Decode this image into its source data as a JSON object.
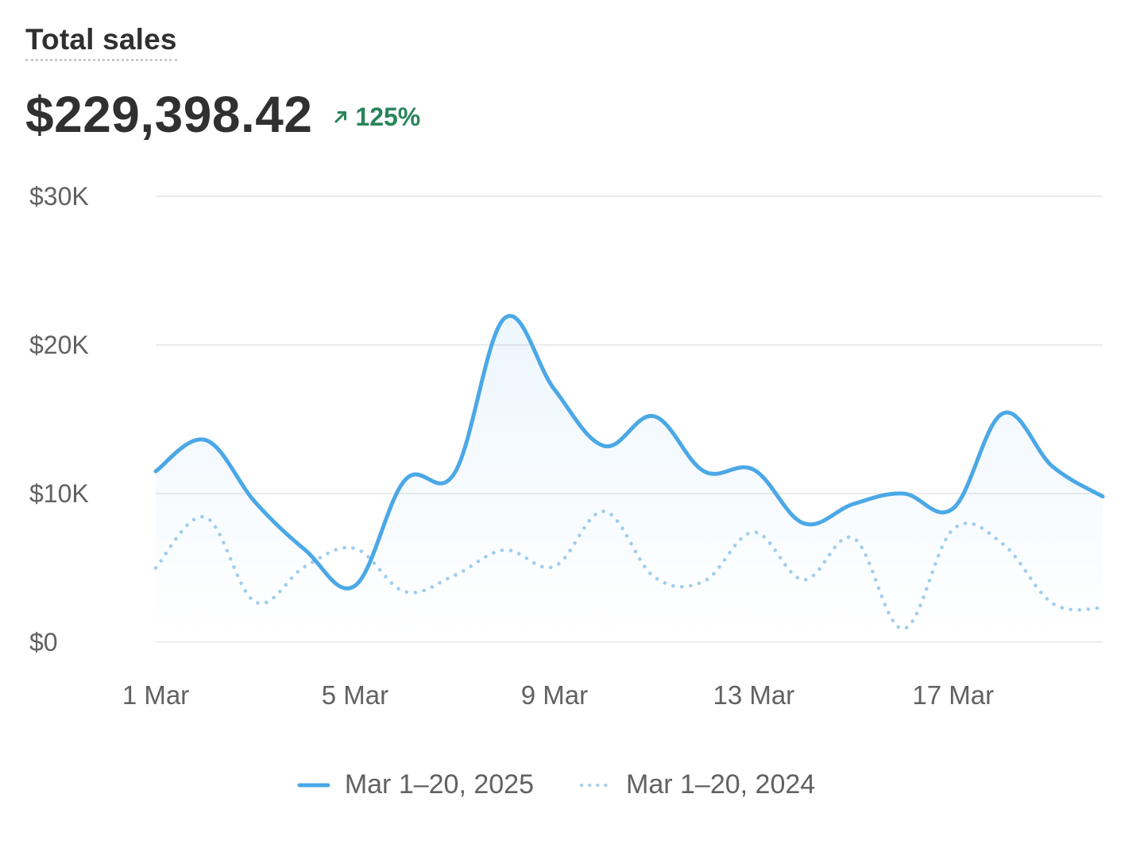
{
  "header": {
    "title": "Total sales",
    "total": "$229,398.42",
    "change": "125%",
    "change_icon": "arrow-up-right-icon"
  },
  "colors": {
    "current": "#4ba8e6",
    "previous": "#9ecdee",
    "grid": "#ebebeb",
    "axis_text": "#616161",
    "positive": "#29845a"
  },
  "chart_data": {
    "type": "line",
    "title": "Total sales",
    "x": [
      "1 Mar",
      "2 Mar",
      "3 Mar",
      "4 Mar",
      "5 Mar",
      "6 Mar",
      "7 Mar",
      "8 Mar",
      "9 Mar",
      "10 Mar",
      "11 Mar",
      "12 Mar",
      "13 Mar",
      "14 Mar",
      "15 Mar",
      "16 Mar",
      "17 Mar",
      "18 Mar",
      "19 Mar",
      "20 Mar"
    ],
    "x_tick_labels": [
      "1 Mar",
      "5 Mar",
      "9 Mar",
      "13 Mar",
      "17 Mar"
    ],
    "y_tick_labels": [
      "$0",
      "$10K",
      "$20K",
      "$30K"
    ],
    "ylim": [
      0,
      30000
    ],
    "grid": true,
    "legend_position": "bottom-center",
    "series": [
      {
        "name": "Mar 1–20, 2025",
        "style": "solid",
        "values": [
          11500,
          13600,
          9400,
          6200,
          3800,
          10900,
          11400,
          21800,
          17000,
          13200,
          15200,
          11500,
          11600,
          8000,
          9300,
          10000,
          9000,
          15400,
          11800,
          9800
        ]
      },
      {
        "name": "Mar 1–20, 2024",
        "style": "dotted",
        "values": [
          5000,
          8400,
          2700,
          5100,
          6300,
          3400,
          4500,
          6200,
          5100,
          8800,
          4400,
          4100,
          7400,
          4200,
          7000,
          900,
          7600,
          6600,
          2600,
          2300
        ]
      }
    ]
  }
}
